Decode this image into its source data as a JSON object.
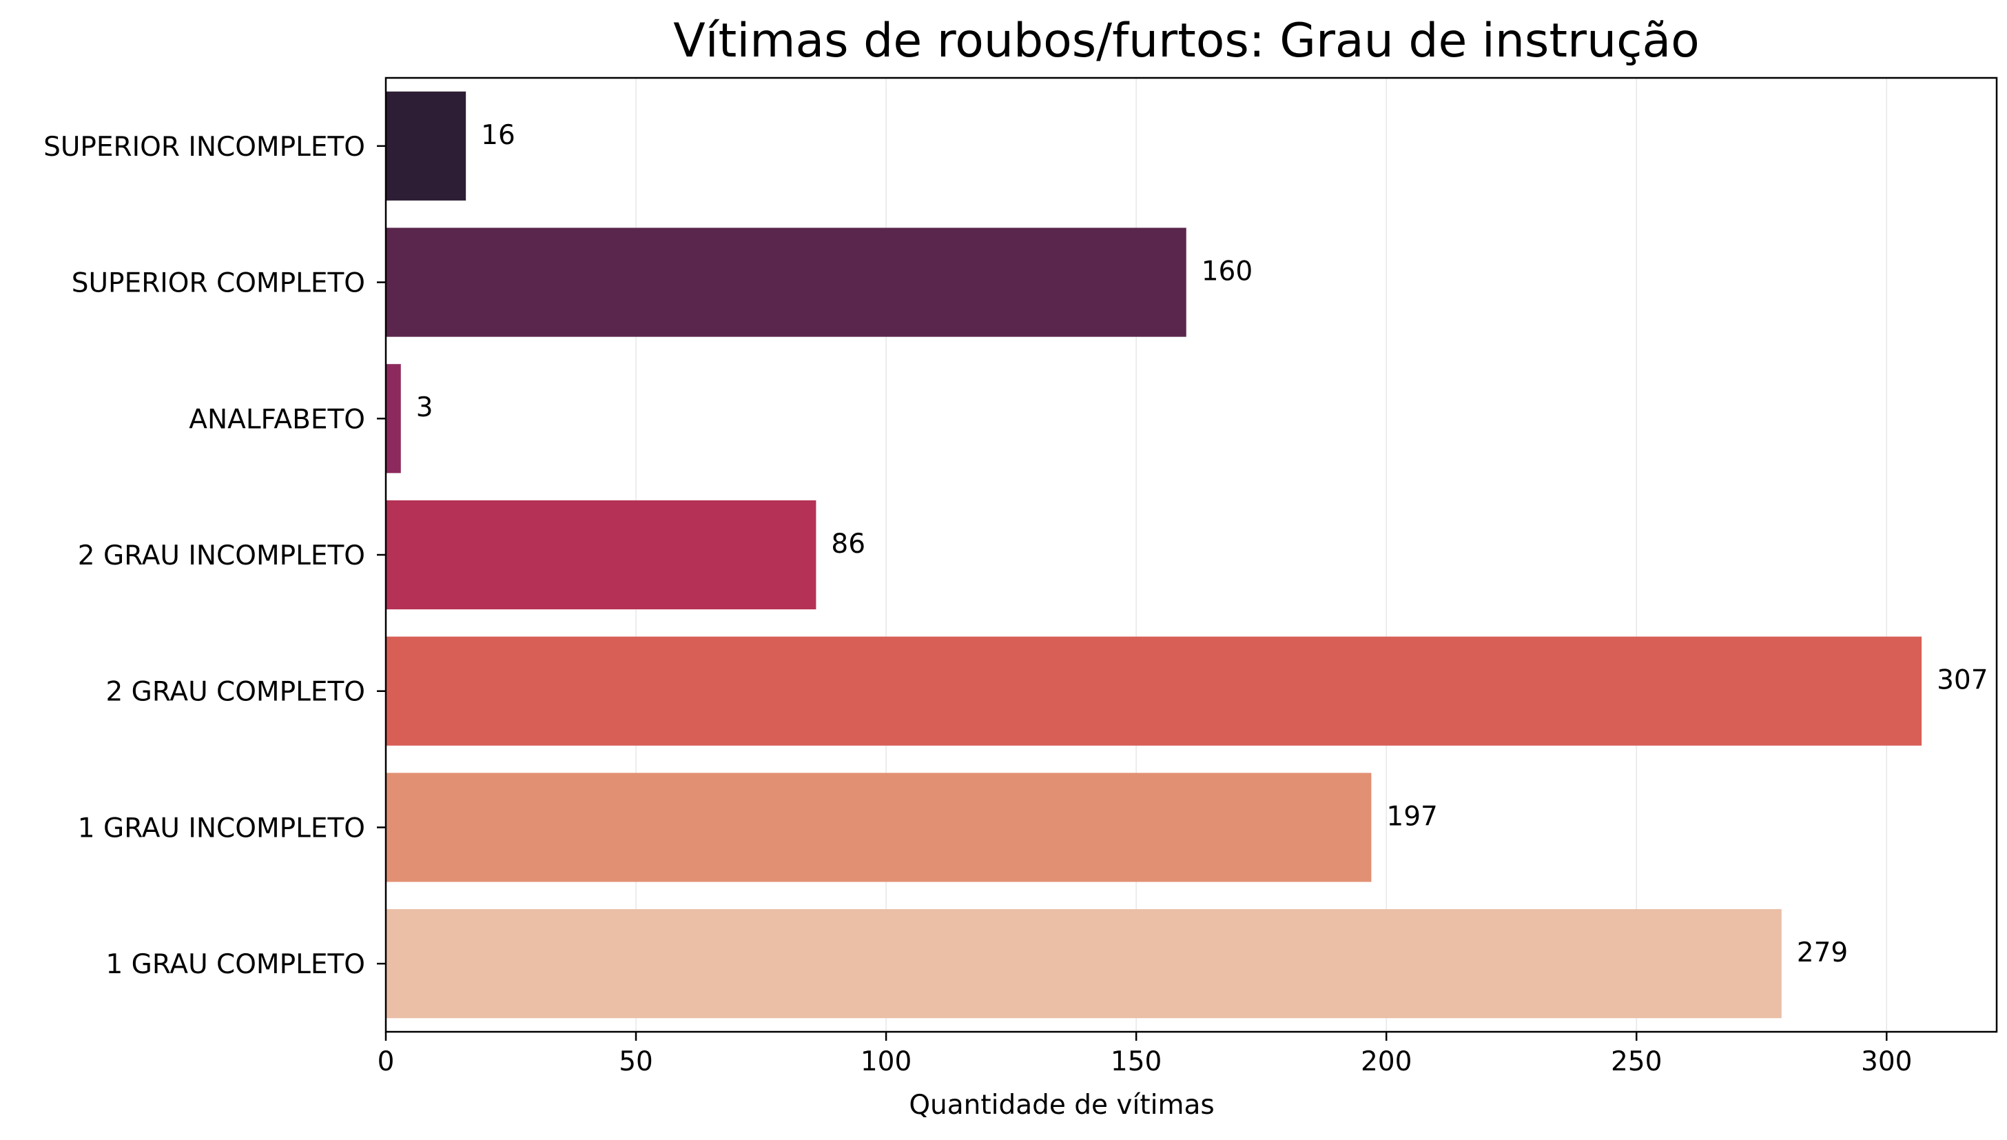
{
  "chart_data": {
    "type": "bar",
    "orientation": "horizontal",
    "title": "Vítimas de roubos/furtos: Grau de instrução",
    "xlabel": "Quantidade de vítimas",
    "ylabel": "",
    "categories": [
      "SUPERIOR INCOMPLETO",
      "SUPERIOR COMPLETO",
      "ANALFABETO",
      "2 GRAU INCOMPLETO",
      "2 GRAU COMPLETO",
      "1 GRAU INCOMPLETO",
      "1 GRAU COMPLETO"
    ],
    "values": [
      16,
      160,
      3,
      86,
      307,
      197,
      279
    ],
    "value_labels": [
      "16",
      "160",
      "3",
      "86",
      "307",
      "197",
      "279"
    ],
    "colors": [
      "#2e1e35",
      "#5b264d",
      "#8d2a5d",
      "#b53155",
      "#d85f56",
      "#e19073",
      "#eabfa6"
    ],
    "xlim": [
      0,
      322
    ],
    "xticks": [
      0,
      50,
      100,
      150,
      200,
      250,
      300
    ],
    "xtick_labels": [
      "0",
      "50",
      "100",
      "150",
      "200",
      "250",
      "300"
    ],
    "grid": "x",
    "legend": "none"
  }
}
